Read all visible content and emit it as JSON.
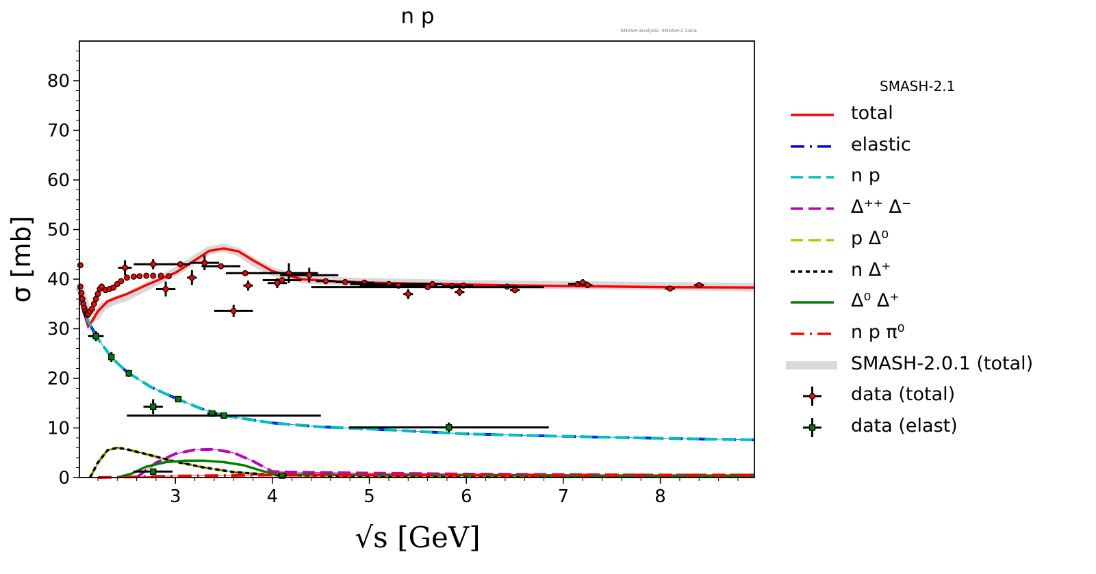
{
  "chart_data": {
    "type": "line",
    "title": "n p",
    "annotation": "SMASH analysis: SMASH-2.1ana",
    "xlabel": "√s [GeV]",
    "ylabel": "σ [mb]",
    "xlim": [
      2.01,
      8.97
    ],
    "ylim": [
      0,
      88
    ],
    "xticks": [
      3,
      4,
      5,
      6,
      7,
      8
    ],
    "yticks": [
      0,
      10,
      20,
      30,
      40,
      50,
      60,
      70,
      80
    ],
    "grid": false,
    "legend": {
      "placement": "outside-right",
      "title": "SMASH-2.1"
    },
    "series": [
      {
        "name": "SMASH-2.0.1 (total)",
        "style": "band",
        "color": "#d9d9d9",
        "x": [
          2.02,
          2.08,
          2.13,
          2.18,
          2.25,
          2.35,
          2.5,
          2.7,
          3.0,
          3.2,
          3.35,
          3.5,
          3.65,
          3.8,
          4.0,
          4.3,
          4.6,
          5.0,
          6.0,
          7.0,
          8.0,
          8.97
        ],
        "y": [
          38,
          34,
          32,
          32.5,
          34.5,
          35.5,
          36.5,
          38.5,
          41.5,
          44,
          45.8,
          46.3,
          45.5,
          43.5,
          41.5,
          40,
          39.6,
          39.4,
          39,
          38.8,
          38.6,
          38.4
        ]
      },
      {
        "name": "total",
        "style": "solid",
        "color": "#ff0000",
        "x": [
          2.02,
          2.06,
          2.1,
          2.14,
          2.2,
          2.3,
          2.4,
          2.5,
          2.7,
          3.0,
          3.2,
          3.35,
          3.5,
          3.65,
          3.8,
          4.0,
          4.3,
          4.6,
          5.0,
          6.0,
          7.0,
          8.0,
          8.97
        ],
        "y": [
          37,
          33,
          30.5,
          31.5,
          33.5,
          35.5,
          36.3,
          37,
          38.8,
          41.3,
          43.8,
          45.7,
          46.2,
          45.6,
          43.8,
          41.6,
          40,
          39.6,
          39.3,
          38.9,
          38.6,
          38.4,
          38.3
        ]
      },
      {
        "name": "elastic",
        "style": "dashdot",
        "color": "#0000ff",
        "x": [
          2.02,
          2.1,
          2.2,
          2.35,
          2.5,
          2.75,
          3.0,
          3.25,
          3.5,
          4.0,
          4.5,
          5.0,
          6.0,
          7.0,
          8.0,
          8.97
        ],
        "y": [
          36,
          31.5,
          28,
          24,
          21.3,
          18.2,
          16,
          14,
          12.5,
          11,
          10.2,
          9.8,
          8.8,
          8.3,
          7.9,
          7.6
        ]
      },
      {
        "name": "n p",
        "style": "dash",
        "color": "#00bfbf",
        "x": [
          2.02,
          2.1,
          2.2,
          2.35,
          2.5,
          2.75,
          3.0,
          3.25,
          3.5,
          4.0,
          4.5,
          5.0,
          6.0,
          7.0,
          8.0,
          8.97
        ],
        "y": [
          36,
          31.5,
          28,
          24,
          21.3,
          18.2,
          16,
          14,
          12.5,
          11,
          10.2,
          9.8,
          8.8,
          8.3,
          7.9,
          7.6
        ]
      },
      {
        "name": "Δ⁺⁺ Δ⁻",
        "style": "dash",
        "color": "#bf00bf",
        "x": [
          2.6,
          2.7,
          2.8,
          3.0,
          3.2,
          3.4,
          3.6,
          3.8,
          4.0,
          4.2,
          4.6,
          5.0,
          6.0,
          7.0,
          8.0,
          8.97
        ],
        "y": [
          0,
          1.5,
          3,
          4.8,
          5.6,
          5.7,
          5,
          3.3,
          1.2,
          1.1,
          1,
          0.9,
          0.7,
          0.6,
          0.5,
          0.5
        ]
      },
      {
        "name": "p Δ⁰",
        "style": "dash",
        "color": "#bfbf00",
        "x": [
          2.12,
          2.2,
          2.3,
          2.4,
          2.5,
          2.7,
          3.0,
          3.3,
          3.6,
          4.0,
          4.5,
          5.0,
          6.0,
          7.0,
          8.0,
          8.97
        ],
        "y": [
          0,
          3,
          5.5,
          6,
          5.7,
          4.7,
          3.2,
          2,
          1.1,
          0.5,
          0.4,
          0.3,
          0.3,
          0.2,
          0.2,
          0.2
        ]
      },
      {
        "name": "n Δ⁺",
        "style": "dotted",
        "color": "#000000",
        "x": [
          2.12,
          2.2,
          2.3,
          2.4,
          2.5,
          2.7,
          3.0,
          3.3,
          3.6,
          4.0,
          4.5,
          5.0,
          6.0,
          7.0,
          8.0,
          8.97
        ],
        "y": [
          0,
          3,
          5.5,
          6,
          5.7,
          4.7,
          3.2,
          2,
          1.1,
          0.5,
          0.4,
          0.3,
          0.3,
          0.2,
          0.2,
          0.2
        ]
      },
      {
        "name": "Δ⁰ Δ⁺",
        "style": "solid",
        "color": "#008000",
        "x": [
          2.4,
          2.55,
          2.7,
          2.9,
          3.1,
          3.3,
          3.5,
          3.7,
          3.9,
          4.05,
          4.5,
          5.0,
          6.0,
          7.0,
          8.0,
          8.97
        ],
        "y": [
          0,
          0.8,
          2.2,
          3.1,
          3.4,
          3.4,
          3.1,
          2.5,
          1.3,
          0.6,
          0.6,
          0.5,
          0.5,
          0.4,
          0.4,
          0.4
        ]
      },
      {
        "name": "n p π⁰",
        "style": "dashdot",
        "color": "#ff0000",
        "x": [
          2.2,
          2.5,
          3.0,
          3.5,
          4.0,
          4.5,
          5.0,
          6.0,
          7.0,
          8.0,
          8.97
        ],
        "y": [
          0,
          0.1,
          0.3,
          0.4,
          0.5,
          0.5,
          0.5,
          0.5,
          0.5,
          0.5,
          0.5
        ]
      }
    ],
    "data_total": {
      "name": "data (total)",
      "color": "#ff0000",
      "points": [
        [
          2.02,
          42.8,
          0,
          0.5
        ],
        [
          2.02,
          38.5,
          0,
          0.5
        ],
        [
          2.03,
          37.2,
          0,
          0.5
        ],
        [
          2.04,
          36,
          0,
          0.5
        ],
        [
          2.05,
          35,
          0,
          0.5
        ],
        [
          2.06,
          34.2,
          0,
          0.5
        ],
        [
          2.07,
          33.5,
          0,
          0.5
        ],
        [
          2.08,
          33,
          0,
          0.5
        ],
        [
          2.09,
          32.8,
          0,
          0.5
        ],
        [
          2.1,
          33,
          0,
          0.5
        ],
        [
          2.12,
          33.5,
          0,
          0.5
        ],
        [
          2.14,
          34,
          0,
          0.5
        ],
        [
          2.16,
          35,
          0,
          0.5
        ],
        [
          2.18,
          36,
          0,
          0.5
        ],
        [
          2.2,
          37,
          0,
          0.5
        ],
        [
          2.22,
          38,
          0,
          0.5
        ],
        [
          2.24,
          38.5,
          0,
          0.5
        ],
        [
          2.28,
          37.8,
          0,
          0.5
        ],
        [
          2.32,
          38,
          0,
          0.5
        ],
        [
          2.36,
          38.3,
          0,
          0.5
        ],
        [
          2.4,
          39,
          0,
          0.5
        ],
        [
          2.44,
          39.6,
          0,
          0.5
        ],
        [
          2.5,
          40.3,
          0,
          0.5
        ],
        [
          2.57,
          40.5,
          0,
          0.4
        ],
        [
          2.63,
          40.6,
          0,
          0.4
        ],
        [
          2.7,
          40.7,
          0,
          0.4
        ],
        [
          2.77,
          40.7,
          0,
          0.4
        ],
        [
          2.85,
          40.7,
          0,
          0.4
        ],
        [
          2.93,
          40.6,
          0,
          0.4
        ],
        [
          2.48,
          42.3,
          0.07,
          1.5
        ],
        [
          2.77,
          43,
          0.2,
          1
        ],
        [
          2.9,
          38,
          0.1,
          1.5
        ],
        [
          3.05,
          43,
          0.1,
          0.5
        ],
        [
          3.17,
          40.3,
          0.05,
          1.5
        ],
        [
          3.3,
          43.3,
          0.15,
          1.5
        ],
        [
          3.47,
          42.6,
          0.2,
          0.5
        ],
        [
          3.6,
          33.6,
          0.2,
          1.2
        ],
        [
          3.72,
          41.2,
          0.2,
          0.5
        ],
        [
          3.75,
          38.7,
          0.05,
          1
        ],
        [
          4.05,
          39.2,
          0.1,
          1
        ],
        [
          4.1,
          39.8,
          0.2,
          0.5
        ],
        [
          4.17,
          41.2,
          0.3,
          2
        ],
        [
          4.38,
          40.8,
          0.3,
          1.5
        ],
        [
          4.55,
          39.6,
          0.1,
          0.5
        ],
        [
          4.75,
          39.4,
          0.1,
          0.5
        ],
        [
          4.95,
          39.3,
          0.1,
          0.5
        ],
        [
          5.2,
          39,
          0.4,
          0.5
        ],
        [
          5.3,
          38.7,
          0.4,
          0.5
        ],
        [
          5.4,
          37,
          0.05,
          1
        ],
        [
          5.65,
          39,
          0.1,
          0.5
        ],
        [
          5.85,
          38.6,
          0.1,
          0.5
        ],
        [
          5.93,
          37.4,
          0.05,
          0.8
        ],
        [
          5.97,
          38.7,
          0.1,
          0.5
        ],
        [
          6.42,
          38.5,
          0.1,
          0.3
        ],
        [
          6.5,
          37.8,
          0.05,
          0.6
        ],
        [
          7.15,
          39,
          0.1,
          0.5
        ],
        [
          7.2,
          39.3,
          0.05,
          0.7
        ],
        [
          7.25,
          38.8,
          0.05,
          0.3
        ],
        [
          8.1,
          38.1,
          0.05,
          0.5
        ],
        [
          8.4,
          38.8,
          0.05,
          0.3
        ],
        [
          5.6,
          38.4,
          1.2,
          0.3
        ]
      ]
    },
    "data_elast": {
      "name": "data (elast)",
      "color": "#008000",
      "points": [
        [
          2.18,
          28.5,
          0.08,
          1
        ],
        [
          2.34,
          24.3,
          0.02,
          1
        ],
        [
          2.52,
          21,
          0.03,
          0.7
        ],
        [
          2.77,
          14.3,
          0.1,
          1.5
        ],
        [
          3.03,
          15.8,
          0.03,
          0.5
        ],
        [
          3.38,
          12.9,
          0.05,
          0.5
        ],
        [
          3.5,
          12.5,
          1.0,
          0.3
        ],
        [
          5.82,
          10.1,
          1.03,
          1
        ],
        [
          2.77,
          1.2,
          0.2,
          0.4
        ],
        [
          4.1,
          0.4,
          0.05,
          0.3
        ]
      ]
    }
  }
}
